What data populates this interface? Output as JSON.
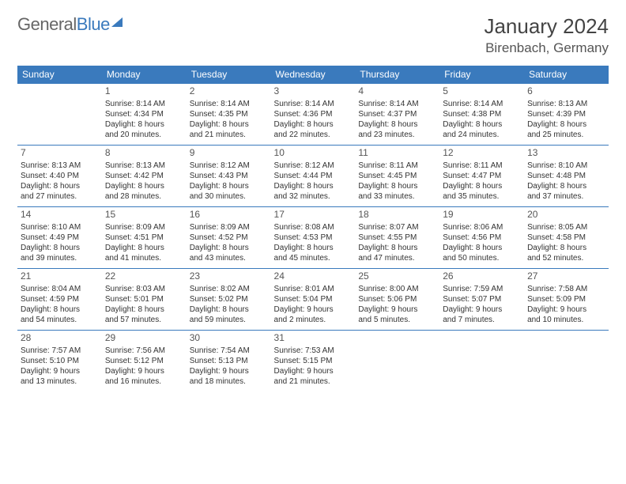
{
  "logo": {
    "part1": "General",
    "part2": "Blue"
  },
  "title": "January 2024",
  "location": "Birenbach, Germany",
  "day_headers": [
    "Sunday",
    "Monday",
    "Tuesday",
    "Wednesday",
    "Thursday",
    "Friday",
    "Saturday"
  ],
  "colors": {
    "header_bg": "#3a7abd",
    "header_text": "#ffffff",
    "border": "#3a7abd",
    "body_text": "#333333",
    "title_text": "#444444"
  },
  "weeks": [
    [
      null,
      {
        "n": "1",
        "sr": "Sunrise: 8:14 AM",
        "ss": "Sunset: 4:34 PM",
        "d1": "Daylight: 8 hours",
        "d2": "and 20 minutes."
      },
      {
        "n": "2",
        "sr": "Sunrise: 8:14 AM",
        "ss": "Sunset: 4:35 PM",
        "d1": "Daylight: 8 hours",
        "d2": "and 21 minutes."
      },
      {
        "n": "3",
        "sr": "Sunrise: 8:14 AM",
        "ss": "Sunset: 4:36 PM",
        "d1": "Daylight: 8 hours",
        "d2": "and 22 minutes."
      },
      {
        "n": "4",
        "sr": "Sunrise: 8:14 AM",
        "ss": "Sunset: 4:37 PM",
        "d1": "Daylight: 8 hours",
        "d2": "and 23 minutes."
      },
      {
        "n": "5",
        "sr": "Sunrise: 8:14 AM",
        "ss": "Sunset: 4:38 PM",
        "d1": "Daylight: 8 hours",
        "d2": "and 24 minutes."
      },
      {
        "n": "6",
        "sr": "Sunrise: 8:13 AM",
        "ss": "Sunset: 4:39 PM",
        "d1": "Daylight: 8 hours",
        "d2": "and 25 minutes."
      }
    ],
    [
      {
        "n": "7",
        "sr": "Sunrise: 8:13 AM",
        "ss": "Sunset: 4:40 PM",
        "d1": "Daylight: 8 hours",
        "d2": "and 27 minutes."
      },
      {
        "n": "8",
        "sr": "Sunrise: 8:13 AM",
        "ss": "Sunset: 4:42 PM",
        "d1": "Daylight: 8 hours",
        "d2": "and 28 minutes."
      },
      {
        "n": "9",
        "sr": "Sunrise: 8:12 AM",
        "ss": "Sunset: 4:43 PM",
        "d1": "Daylight: 8 hours",
        "d2": "and 30 minutes."
      },
      {
        "n": "10",
        "sr": "Sunrise: 8:12 AM",
        "ss": "Sunset: 4:44 PM",
        "d1": "Daylight: 8 hours",
        "d2": "and 32 minutes."
      },
      {
        "n": "11",
        "sr": "Sunrise: 8:11 AM",
        "ss": "Sunset: 4:45 PM",
        "d1": "Daylight: 8 hours",
        "d2": "and 33 minutes."
      },
      {
        "n": "12",
        "sr": "Sunrise: 8:11 AM",
        "ss": "Sunset: 4:47 PM",
        "d1": "Daylight: 8 hours",
        "d2": "and 35 minutes."
      },
      {
        "n": "13",
        "sr": "Sunrise: 8:10 AM",
        "ss": "Sunset: 4:48 PM",
        "d1": "Daylight: 8 hours",
        "d2": "and 37 minutes."
      }
    ],
    [
      {
        "n": "14",
        "sr": "Sunrise: 8:10 AM",
        "ss": "Sunset: 4:49 PM",
        "d1": "Daylight: 8 hours",
        "d2": "and 39 minutes."
      },
      {
        "n": "15",
        "sr": "Sunrise: 8:09 AM",
        "ss": "Sunset: 4:51 PM",
        "d1": "Daylight: 8 hours",
        "d2": "and 41 minutes."
      },
      {
        "n": "16",
        "sr": "Sunrise: 8:09 AM",
        "ss": "Sunset: 4:52 PM",
        "d1": "Daylight: 8 hours",
        "d2": "and 43 minutes."
      },
      {
        "n": "17",
        "sr": "Sunrise: 8:08 AM",
        "ss": "Sunset: 4:53 PM",
        "d1": "Daylight: 8 hours",
        "d2": "and 45 minutes."
      },
      {
        "n": "18",
        "sr": "Sunrise: 8:07 AM",
        "ss": "Sunset: 4:55 PM",
        "d1": "Daylight: 8 hours",
        "d2": "and 47 minutes."
      },
      {
        "n": "19",
        "sr": "Sunrise: 8:06 AM",
        "ss": "Sunset: 4:56 PM",
        "d1": "Daylight: 8 hours",
        "d2": "and 50 minutes."
      },
      {
        "n": "20",
        "sr": "Sunrise: 8:05 AM",
        "ss": "Sunset: 4:58 PM",
        "d1": "Daylight: 8 hours",
        "d2": "and 52 minutes."
      }
    ],
    [
      {
        "n": "21",
        "sr": "Sunrise: 8:04 AM",
        "ss": "Sunset: 4:59 PM",
        "d1": "Daylight: 8 hours",
        "d2": "and 54 minutes."
      },
      {
        "n": "22",
        "sr": "Sunrise: 8:03 AM",
        "ss": "Sunset: 5:01 PM",
        "d1": "Daylight: 8 hours",
        "d2": "and 57 minutes."
      },
      {
        "n": "23",
        "sr": "Sunrise: 8:02 AM",
        "ss": "Sunset: 5:02 PM",
        "d1": "Daylight: 8 hours",
        "d2": "and 59 minutes."
      },
      {
        "n": "24",
        "sr": "Sunrise: 8:01 AM",
        "ss": "Sunset: 5:04 PM",
        "d1": "Daylight: 9 hours",
        "d2": "and 2 minutes."
      },
      {
        "n": "25",
        "sr": "Sunrise: 8:00 AM",
        "ss": "Sunset: 5:06 PM",
        "d1": "Daylight: 9 hours",
        "d2": "and 5 minutes."
      },
      {
        "n": "26",
        "sr": "Sunrise: 7:59 AM",
        "ss": "Sunset: 5:07 PM",
        "d1": "Daylight: 9 hours",
        "d2": "and 7 minutes."
      },
      {
        "n": "27",
        "sr": "Sunrise: 7:58 AM",
        "ss": "Sunset: 5:09 PM",
        "d1": "Daylight: 9 hours",
        "d2": "and 10 minutes."
      }
    ],
    [
      {
        "n": "28",
        "sr": "Sunrise: 7:57 AM",
        "ss": "Sunset: 5:10 PM",
        "d1": "Daylight: 9 hours",
        "d2": "and 13 minutes."
      },
      {
        "n": "29",
        "sr": "Sunrise: 7:56 AM",
        "ss": "Sunset: 5:12 PM",
        "d1": "Daylight: 9 hours",
        "d2": "and 16 minutes."
      },
      {
        "n": "30",
        "sr": "Sunrise: 7:54 AM",
        "ss": "Sunset: 5:13 PM",
        "d1": "Daylight: 9 hours",
        "d2": "and 18 minutes."
      },
      {
        "n": "31",
        "sr": "Sunrise: 7:53 AM",
        "ss": "Sunset: 5:15 PM",
        "d1": "Daylight: 9 hours",
        "d2": "and 21 minutes."
      },
      null,
      null,
      null
    ]
  ]
}
